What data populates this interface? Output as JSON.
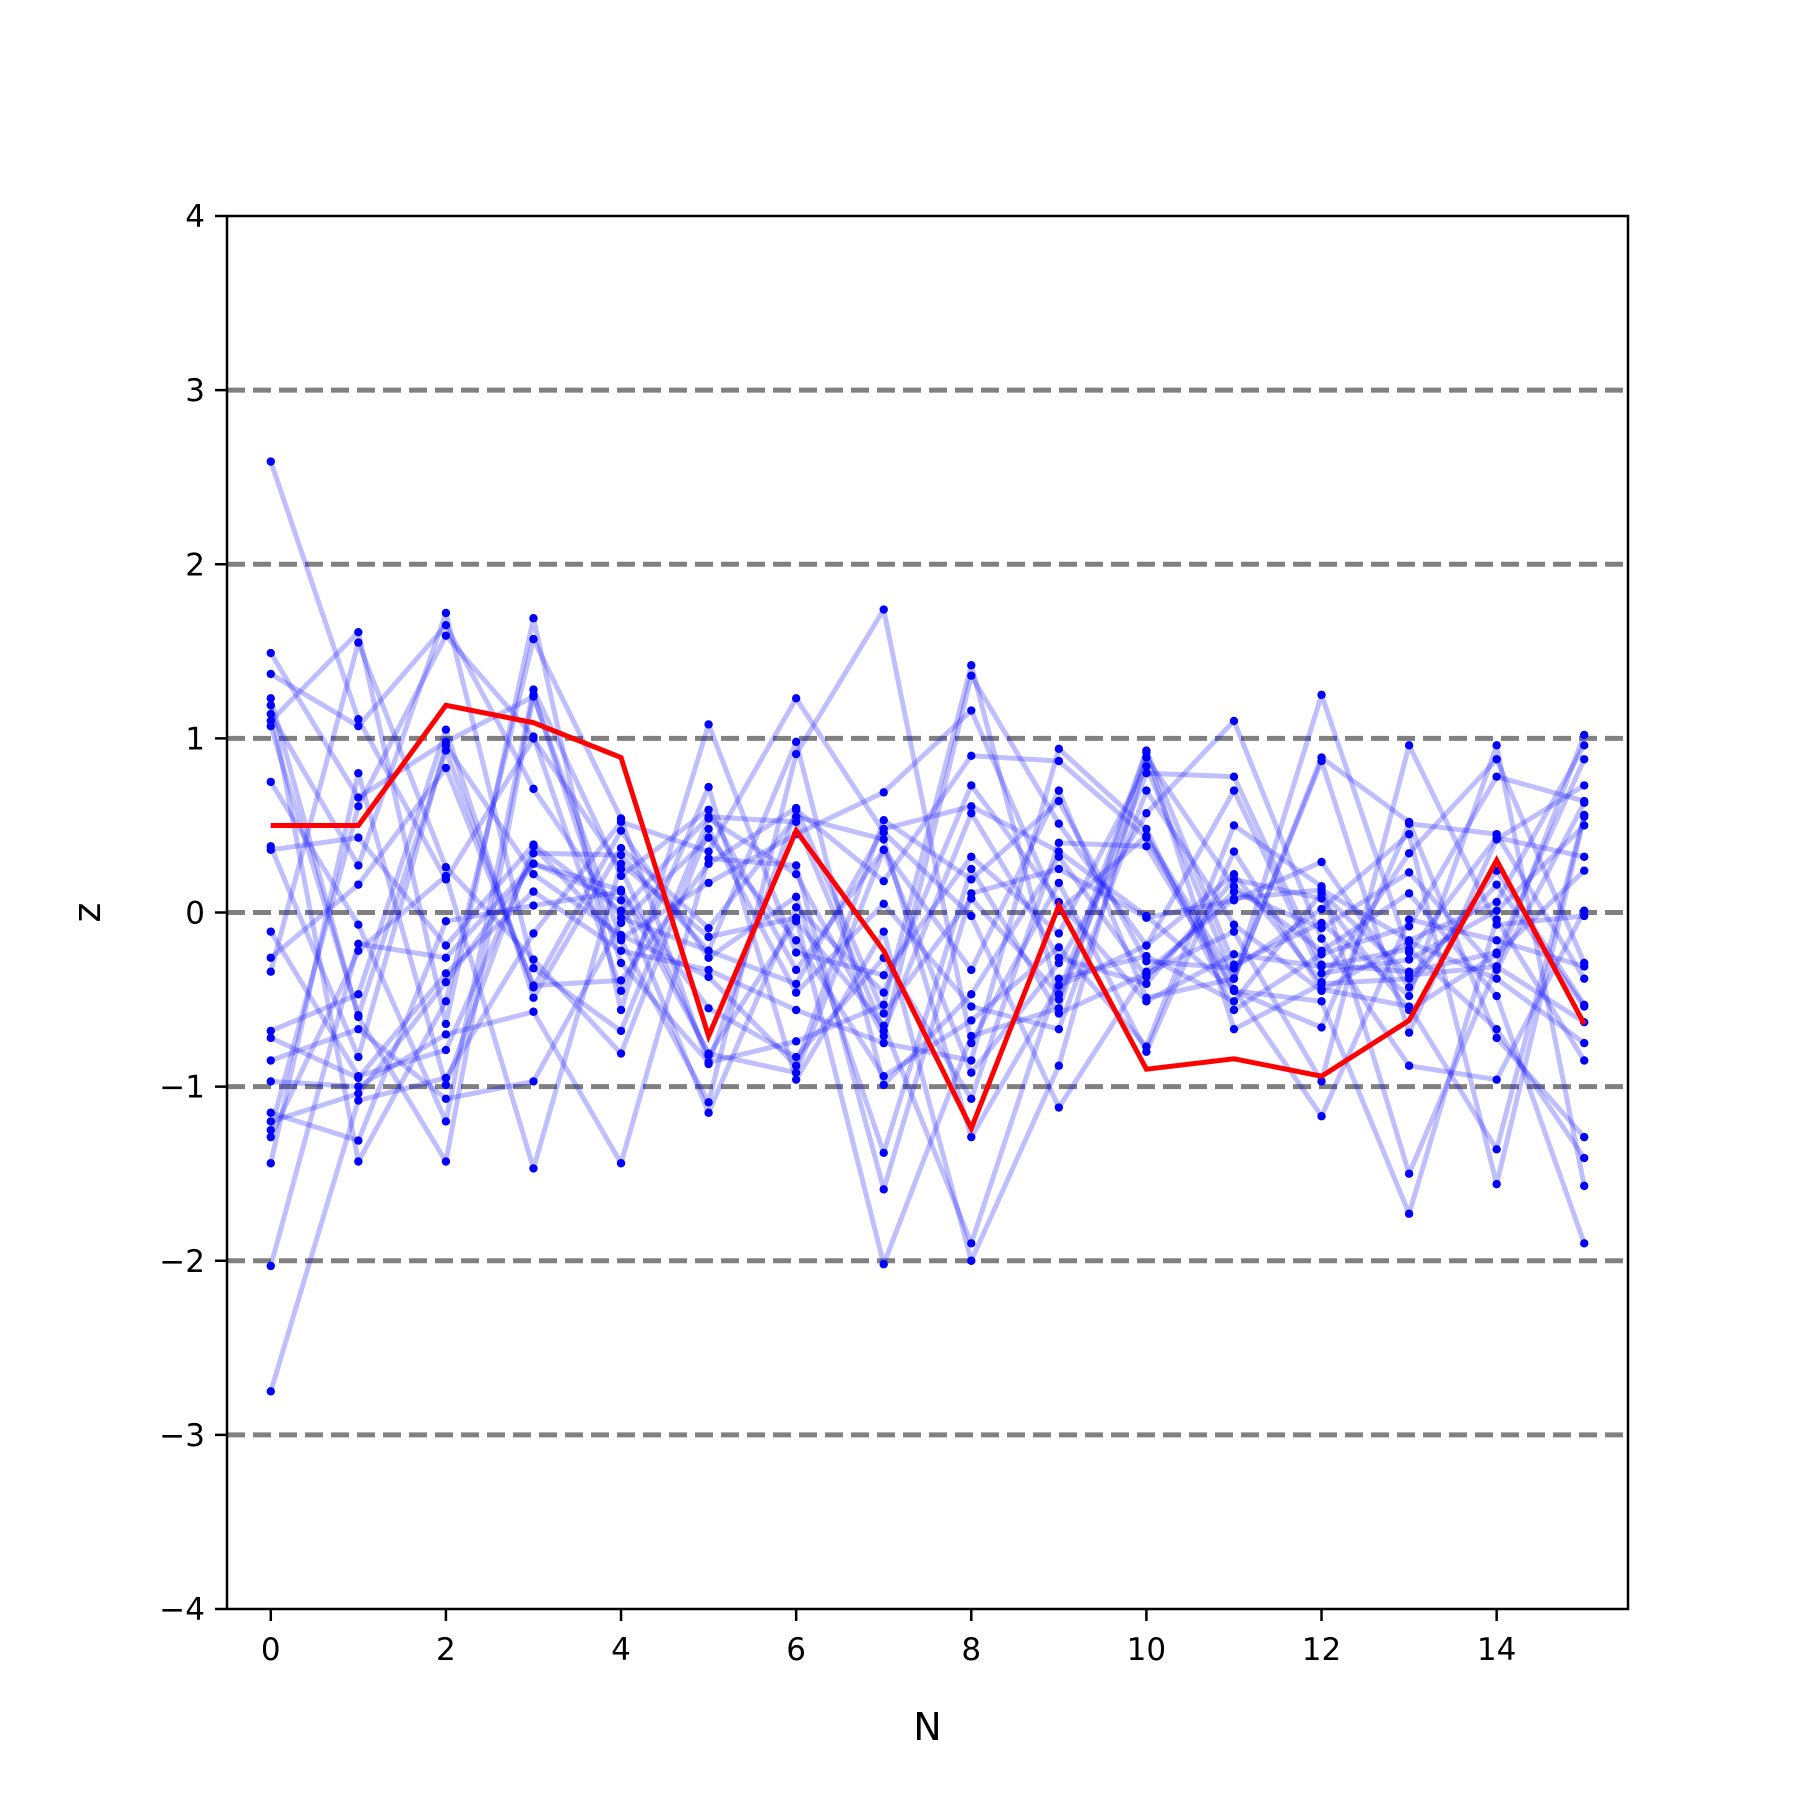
{
  "chart_data": {
    "type": "line",
    "title": "",
    "xlabel": "N",
    "ylabel": "z",
    "xlim": [
      -0.5,
      15.5
    ],
    "ylim": [
      -4,
      4
    ],
    "x": [
      0,
      1,
      2,
      3,
      4,
      5,
      6,
      7,
      8,
      9,
      10,
      11,
      12,
      13,
      14,
      15
    ],
    "x_ticks": [
      0,
      2,
      4,
      6,
      8,
      10,
      12,
      14
    ],
    "y_ticks": [
      -4,
      -3,
      -2,
      -1,
      0,
      1,
      2,
      3,
      4
    ],
    "x_tick_labels": [
      "0",
      "2",
      "4",
      "6",
      "8",
      "10",
      "12",
      "14"
    ],
    "y_tick_labels": [
      "−4",
      "−3",
      "−2",
      "−1",
      "0",
      "1",
      "2",
      "3",
      "4"
    ],
    "reference_lines_y": [
      -3,
      -2,
      -1,
      0,
      1,
      2,
      3
    ],
    "grid": false,
    "legend": "none",
    "colors": {
      "samples": "#0000ff",
      "highlight": "#ff0000",
      "reference": "#808080",
      "axes": "#000000"
    },
    "highlight_series": {
      "values": [
        0.5,
        0.5,
        1.19,
        1.09,
        0.89,
        -0.71,
        0.47,
        -0.22,
        -1.24,
        0.04,
        -0.9,
        -0.84,
        -0.94,
        -0.62,
        0.3,
        -0.64
      ]
    },
    "series": [
      {
        "values": [
          2.59,
          1.11,
          0.19,
          1.0,
          0.25,
          -0.82,
          -0.05,
          -0.65,
          -1.9,
          -0.38,
          -0.25,
          -0.51,
          0.11,
          -0.36,
          -0.31,
          -0.63
        ]
      },
      {
        "values": [
          1.49,
          0.66,
          0.98,
          1.24,
          -0.15,
          0.17,
          0.45,
          0.69,
          1.16,
          0.01,
          0.44,
          -0.38,
          1.25,
          -0.23,
          0.43,
          0.32
        ]
      },
      {
        "values": [
          1.37,
          1.07,
          1.65,
          0.71,
          -0.03,
          -0.22,
          -0.41,
          0.48,
          0.61,
          0.35,
          -0.02,
          -0.45,
          -0.66,
          0.51,
          0.45,
          -0.38
        ]
      },
      {
        "values": [
          1.23,
          -0.6,
          -1.43,
          1.25,
          -0.29,
          -0.86,
          -0.74,
          -0.53,
          1.42,
          -0.5,
          0.8,
          0.78,
          -0.3,
          -0.34,
          -0.23,
          0.88
        ]
      },
      {
        "values": [
          1.19,
          -1.43,
          -0.51,
          1.57,
          0.54,
          -0.87,
          0.59,
          0.18,
          0.9,
          0.87,
          0.43,
          -0.44,
          -1.17,
          -0.04,
          -0.16,
          -0.31
        ]
      },
      {
        "values": [
          1.14,
          0.27,
          1.72,
          -0.32,
          -0.68,
          0.54,
          0.22,
          -0.71,
          1.36,
          0.51,
          -0.19,
          0.22,
          -0.4,
          0.34,
          0.88,
          -0.29
        ]
      },
      {
        "values": [
          1.1,
          1.61,
          -0.64,
          1.69,
          -0.56,
          1.08,
          -0.23,
          -0.36,
          0.32,
          -0.12,
          0.84,
          -0.38,
          0.87,
          -0.69,
          0.42,
          0.73
        ]
      },
      {
        "values": [
          1.07,
          -0.59,
          0.93,
          -0.43,
          0.47,
          -0.26,
          0.09,
          -1.38,
          0.25,
          -0.58,
          -0.35,
          -0.11,
          -0.97,
          0.96,
          -0.07,
          -0.02
        ]
      },
      {
        "values": [
          0.75,
          -0.07,
          -1.2,
          1.28,
          0.21,
          0.59,
          -0.33,
          0.36,
          -0.33,
          0.7,
          -0.49,
          -0.38,
          0.89,
          0.52,
          -0.72,
          -1.29
        ]
      },
      {
        "values": [
          0.38,
          -0.83,
          0.96,
          0.22,
          -0.13,
          -0.37,
          -0.88,
          0.53,
          0.19,
          0.64,
          -0.28,
          -0.32,
          0.02,
          0.45,
          -1.56,
          0.55
        ]
      },
      {
        "values": [
          0.36,
          0.43,
          -0.19,
          0.39,
          0.01,
          0.55,
          0.52,
          -0.68,
          0.57,
          -0.26,
          -0.41,
          0.19,
          0.08,
          -0.56,
          -0.24,
          0.24
        ]
      },
      {
        "values": [
          -0.11,
          -0.94,
          -0.79,
          0.34,
          0.33,
          -0.22,
          0.98,
          -0.99,
          -0.47,
          0.32,
          -0.37,
          0.12,
          -0.09,
          0.23,
          -0.33,
          0.63
        ]
      },
      {
        "values": [
          -0.26,
          0.16,
          0.83,
          -0.42,
          -0.39,
          0.28,
          0.6,
          -0.58,
          0.08,
          -0.47,
          0.93,
          -0.3,
          -0.06,
          -0.48,
          0.96,
          -1.57
        ]
      },
      {
        "values": [
          -0.34,
          1.55,
          0.26,
          -0.27,
          -0.81,
          0.48,
          -0.46,
          0.05,
          -0.54,
          -0.67,
          0.7,
          -0.07,
          -0.45,
          -0.17,
          -0.38,
          -0.75
        ]
      },
      {
        "values": [
          -0.68,
          -0.47,
          1.05,
          -0.49,
          0.37,
          -0.09,
          0.55,
          0.42,
          -1.29,
          -0.42,
          -0.19,
          0.7,
          -0.35,
          -0.27,
          0.01,
          0.5
        ]
      },
      {
        "values": [
          -0.72,
          -0.95,
          -0.35,
          0.12,
          -0.22,
          -0.33,
          -0.56,
          -0.75,
          -0.85,
          0.94,
          0.48,
          -0.56,
          -0.24,
          -0.08,
          0.78,
          0.64
        ]
      },
      {
        "values": [
          -0.85,
          -0.67,
          -1.07,
          -0.97,
          -0.06,
          0.43,
          -0.16,
          -0.94,
          -0.62,
          -0.2,
          -0.77,
          0.5,
          0.15,
          -1.5,
          -0.31,
          1.02
        ]
      },
      {
        "values": [
          -0.97,
          -1.0,
          -0.7,
          -0.57,
          -1.44,
          0.31,
          0.27,
          -1.59,
          0.11,
          0.25,
          -0.03,
          0.07,
          0.29,
          -0.43,
          0.24,
          -0.53
        ]
      },
      {
        "values": [
          -1.15,
          -1.31,
          -0.05,
          0.04,
          0.12,
          -0.55,
          -0.83,
          -0.26,
          -1.07,
          0.4,
          0.38,
          -0.45,
          -0.51,
          -1.73,
          -0.04,
          -0.85
        ]
      },
      {
        "values": [
          -1.2,
          -1.04,
          -0.4,
          0.28,
          0.07,
          -1.15,
          0.03,
          -0.46,
          0.73,
          0.06,
          -0.51,
          -0.24,
          -0.31,
          -0.21,
          -0.67,
          -1.41
        ]
      },
      {
        "values": [
          -1.25,
          0.61,
          1.59,
          1.01,
          -0.45,
          0.72,
          -0.96,
          -0.11,
          -2.0,
          -0.88,
          0.89,
          0.15,
          -0.22,
          0.11,
          -0.48,
          -1.9
        ]
      },
      {
        "values": [
          -1.29,
          -0.22,
          0.21,
          -1.47,
          0.28,
          -0.14,
          -0.03,
          -2.02,
          -0.71,
          -0.55,
          0.92,
          -0.67,
          -0.41,
          -0.38,
          0.16,
          -0.54
        ]
      },
      {
        "values": [
          -1.44,
          0.8,
          -0.99,
          0.38,
          -0.16,
          -1.09,
          0.91,
          1.74,
          -0.75,
          0.17,
          -0.8,
          0.35,
          -0.44,
          -0.54,
          -1.36,
          0.56
        ]
      },
      {
        "values": [
          -2.03,
          -0.18,
          -0.26,
          0.28,
          0.13,
          -0.81,
          -0.92,
          0.36,
          -0.92,
          -0.29,
          0.57,
          1.1,
          -0.15,
          -0.88,
          -0.96,
          0.01
        ]
      },
      {
        "values": [
          -2.75,
          -1.08,
          -0.95,
          -0.12,
          0.52,
          0.35,
          1.23,
          0.46,
          -0.02,
          -1.12,
          -0.34,
          0.08,
          0.13,
          -0.16,
          0.06,
          0.96
        ]
      }
    ]
  }
}
